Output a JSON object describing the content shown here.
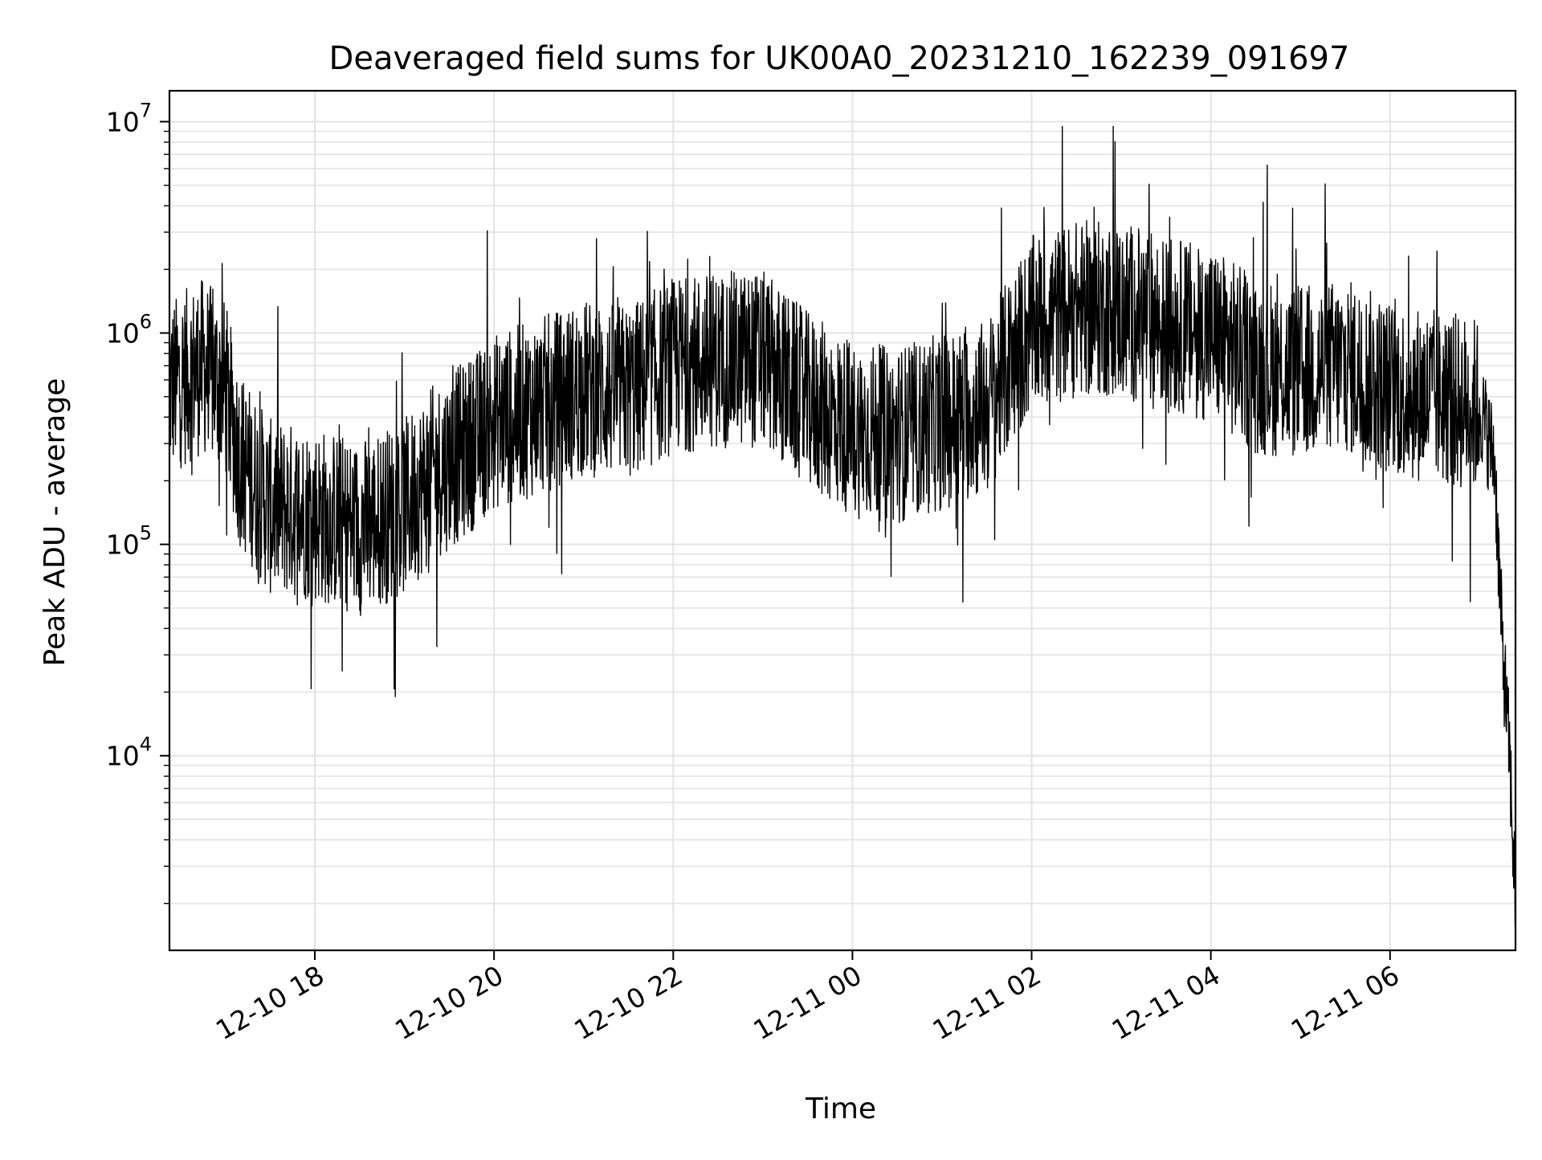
{
  "chart_data": {
    "type": "line",
    "title": "Deaveraged field sums for UK00A0_20231210_162239_091697",
    "xlabel": "Time",
    "ylabel": "Peak ADU - average",
    "x_axis": {
      "type": "datetime",
      "range": [
        "2023-12-10 16:22:39",
        "2023-12-11 07:24:00"
      ],
      "ticks": [
        {
          "value": "2023-12-10 18:00",
          "label": "12-10 18"
        },
        {
          "value": "2023-12-10 20:00",
          "label": "12-10 20"
        },
        {
          "value": "2023-12-10 22:00",
          "label": "12-10 22"
        },
        {
          "value": "2023-12-11 00:00",
          "label": "12-11 00"
        },
        {
          "value": "2023-12-11 02:00",
          "label": "12-11 02"
        },
        {
          "value": "2023-12-11 04:00",
          "label": "12-11 04"
        },
        {
          "value": "2023-12-11 06:00",
          "label": "12-11 06"
        }
      ]
    },
    "y_axis": {
      "scale": "log",
      "range": [
        1200,
        14000000
      ],
      "ticks": [
        {
          "value": 10000,
          "base": "10",
          "exp": "4"
        },
        {
          "value": 100000,
          "base": "10",
          "exp": "5"
        },
        {
          "value": 1000000,
          "base": "10",
          "exp": "6"
        },
        {
          "value": 10000000,
          "base": "10",
          "exp": "7"
        }
      ]
    },
    "grid": {
      "major": true,
      "minor": true,
      "color": "#e3e3e3"
    },
    "line_color": "#000000",
    "series": [
      {
        "x": [
          "2023-12-10 16:22:39",
          "2023-12-10 16:45",
          "2023-12-10 17:00",
          "2023-12-10 17:10",
          "2023-12-10 17:30",
          "2023-12-10 18:00",
          "2023-12-10 18:30",
          "2023-12-10 19:00",
          "2023-12-10 19:20",
          "2023-12-10 19:40",
          "2023-12-10 20:00",
          "2023-12-10 20:30",
          "2023-12-10 21:00",
          "2023-12-10 21:30",
          "2023-12-10 22:00",
          "2023-12-10 22:30",
          "2023-12-10 23:00",
          "2023-12-10 23:30",
          "2023-12-11 00:00",
          "2023-12-11 00:30",
          "2023-12-11 01:00",
          "2023-12-11 01:30",
          "2023-12-11 02:00",
          "2023-12-11 02:30",
          "2023-12-11 03:00",
          "2023-12-11 03:30",
          "2023-12-11 04:00",
          "2023-12-11 04:30",
          "2023-12-11 05:00",
          "2023-12-11 05:30",
          "2023-12-11 06:00",
          "2023-12-11 06:30",
          "2023-12-11 07:00",
          "2023-12-11 07:10",
          "2023-12-11 07:15",
          "2023-12-11 07:20",
          "2023-12-11 07:24"
        ],
        "values": [
          550000,
          700000,
          550000,
          250000,
          150000,
          140000,
          120000,
          150000,
          220000,
          280000,
          380000,
          450000,
          550000,
          520000,
          700000,
          750000,
          750000,
          480000,
          350000,
          330000,
          380000,
          450000,
          1100000,
          1300000,
          1300000,
          1100000,
          1000000,
          700000,
          650000,
          700000,
          550000,
          500000,
          450000,
          250000,
          35000,
          10000,
          2000
        ]
      }
    ]
  }
}
